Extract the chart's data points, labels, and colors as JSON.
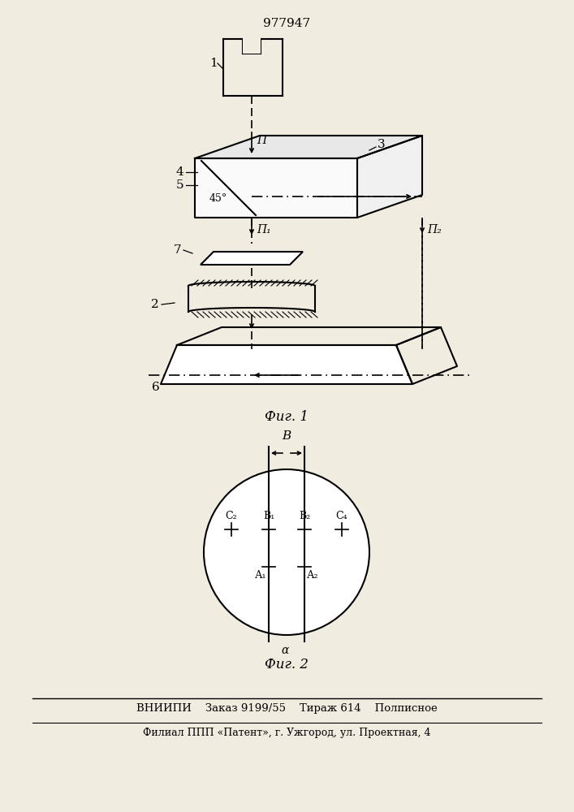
{
  "title": "977947",
  "fig1_label": "Фиг. 1",
  "fig2_label": "Фиг. 2",
  "footer_line1": "ВНИИПИ    Заказ 9199/55    Тираж 614    Полписное",
  "footer_line2": "Филиал ППП «Патент», г. Ужгород, ул. Проектная, 4",
  "bg_color": "#f0ece0"
}
